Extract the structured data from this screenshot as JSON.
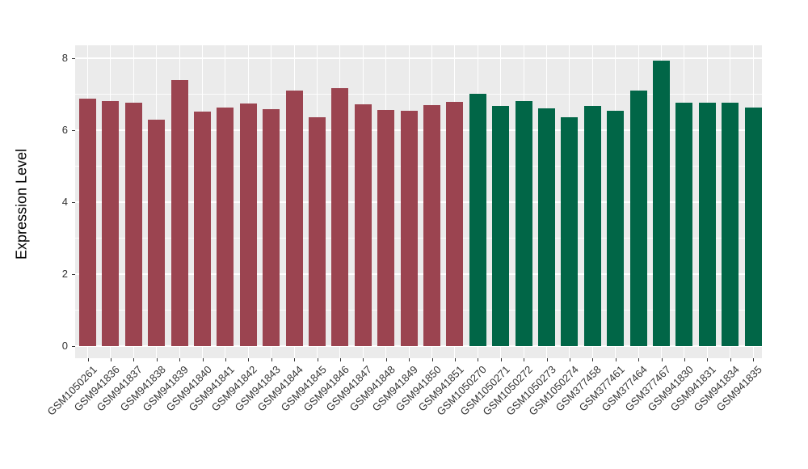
{
  "chart_data": {
    "type": "bar",
    "title": "",
    "xlabel": "",
    "ylabel": "Expression Level",
    "categories": [
      "GSM1050261",
      "GSM941836",
      "GSM941837",
      "GSM941838",
      "GSM941839",
      "GSM941840",
      "GSM941841",
      "GSM941842",
      "GSM941843",
      "GSM941844",
      "GSM941845",
      "GSM941846",
      "GSM941847",
      "GSM941848",
      "GSM941849",
      "GSM941850",
      "GSM941851",
      "GSM1050270",
      "GSM1050271",
      "GSM1050272",
      "GSM1050273",
      "GSM1050274",
      "GSM377458",
      "GSM377461",
      "GSM377464",
      "GSM377467",
      "GSM941830",
      "GSM941831",
      "GSM941834",
      "GSM941835"
    ],
    "values": [
      6.87,
      6.8,
      6.76,
      6.29,
      7.4,
      6.51,
      6.64,
      6.75,
      6.58,
      7.09,
      6.37,
      7.16,
      6.71,
      6.57,
      6.54,
      6.7,
      6.78,
      7.02,
      6.67,
      6.82,
      6.6,
      6.37,
      6.68,
      6.54,
      7.1,
      7.94,
      6.76,
      6.76,
      6.77,
      6.64
    ],
    "group_split_index": 17,
    "group_colors": {
      "group_1": "#9B4450",
      "group_2": "#016647"
    },
    "yticks": [
      0,
      2,
      4,
      6,
      8
    ],
    "minor_yticks": [
      1,
      3,
      5,
      7
    ],
    "ylim": [
      0,
      8.35
    ],
    "grid": "on",
    "legend": "none",
    "panel_background": "#EBEBEB",
    "gridline_color": "#FFFFFF",
    "tick_text_color": "#333333",
    "axis_title_color": "#000000"
  }
}
